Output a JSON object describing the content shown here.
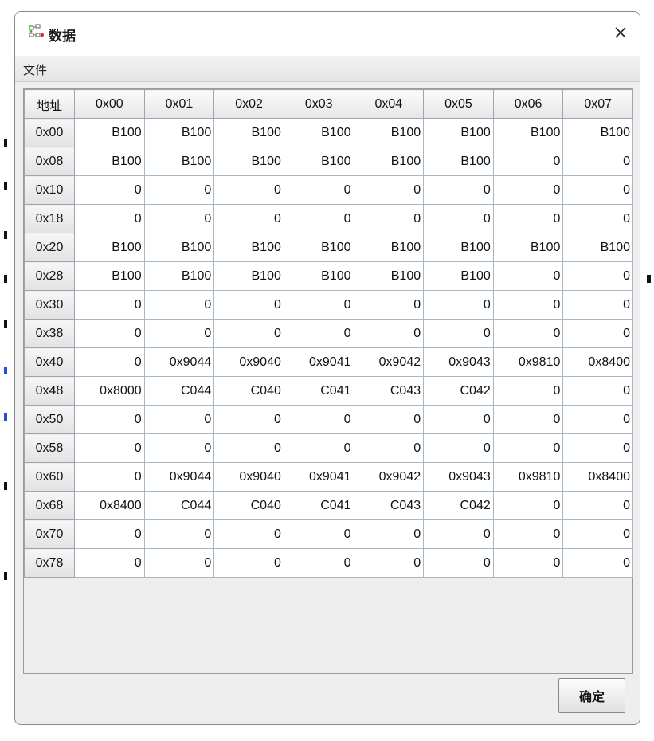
{
  "window": {
    "title": "数据",
    "icon": "network-data-icon",
    "close_icon": "close-icon"
  },
  "menu": {
    "file_label": "文件"
  },
  "table": {
    "address_header": "地址",
    "columns": [
      "0x00",
      "0x01",
      "0x02",
      "0x03",
      "0x04",
      "0x05",
      "0x06",
      "0x07"
    ],
    "rows": [
      {
        "addr": "0x00",
        "cells": [
          "B100",
          "B100",
          "B100",
          "B100",
          "B100",
          "B100",
          "B100",
          "B100"
        ]
      },
      {
        "addr": "0x08",
        "cells": [
          "B100",
          "B100",
          "B100",
          "B100",
          "B100",
          "B100",
          "0",
          "0"
        ]
      },
      {
        "addr": "0x10",
        "cells": [
          "0",
          "0",
          "0",
          "0",
          "0",
          "0",
          "0",
          "0"
        ]
      },
      {
        "addr": "0x18",
        "cells": [
          "0",
          "0",
          "0",
          "0",
          "0",
          "0",
          "0",
          "0"
        ]
      },
      {
        "addr": "0x20",
        "cells": [
          "B100",
          "B100",
          "B100",
          "B100",
          "B100",
          "B100",
          "B100",
          "B100"
        ]
      },
      {
        "addr": "0x28",
        "cells": [
          "B100",
          "B100",
          "B100",
          "B100",
          "B100",
          "B100",
          "0",
          "0"
        ]
      },
      {
        "addr": "0x30",
        "cells": [
          "0",
          "0",
          "0",
          "0",
          "0",
          "0",
          "0",
          "0"
        ]
      },
      {
        "addr": "0x38",
        "cells": [
          "0",
          "0",
          "0",
          "0",
          "0",
          "0",
          "0",
          "0"
        ]
      },
      {
        "addr": "0x40",
        "cells": [
          "0",
          "0x9044",
          "0x9040",
          "0x9041",
          "0x9042",
          "0x9043",
          "0x9810",
          "0x8400"
        ]
      },
      {
        "addr": "0x48",
        "cells": [
          "0x8000",
          "C044",
          "C040",
          "C041",
          "C043",
          "C042",
          "0",
          "0"
        ]
      },
      {
        "addr": "0x50",
        "cells": [
          "0",
          "0",
          "0",
          "0",
          "0",
          "0",
          "0",
          "0"
        ]
      },
      {
        "addr": "0x58",
        "cells": [
          "0",
          "0",
          "0",
          "0",
          "0",
          "0",
          "0",
          "0"
        ]
      },
      {
        "addr": "0x60",
        "cells": [
          "0",
          "0x9044",
          "0x9040",
          "0x9041",
          "0x9042",
          "0x9043",
          "0x9810",
          "0x8400"
        ]
      },
      {
        "addr": "0x68",
        "cells": [
          "0x8400",
          "C044",
          "C040",
          "C041",
          "C043",
          "C042",
          "0",
          "0"
        ]
      },
      {
        "addr": "0x70",
        "cells": [
          "0",
          "0",
          "0",
          "0",
          "0",
          "0",
          "0",
          "0"
        ]
      },
      {
        "addr": "0x78",
        "cells": [
          "0",
          "0",
          "0",
          "0",
          "0",
          "0",
          "0",
          "0"
        ]
      }
    ]
  },
  "footer": {
    "ok_label": "确定"
  }
}
